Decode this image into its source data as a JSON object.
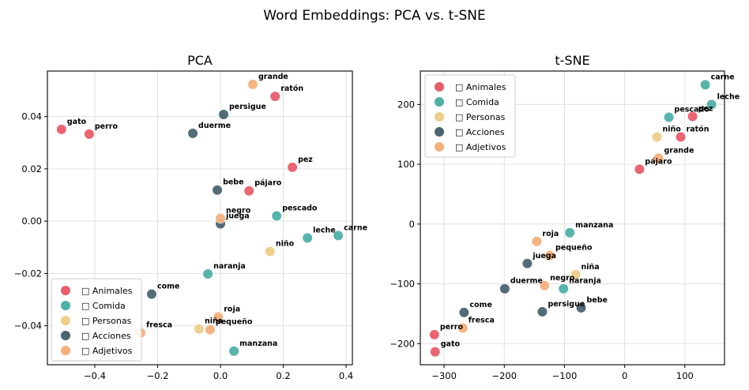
{
  "figure": {
    "suptitle": "Word Embeddings: PCA vs. t-SNE"
  },
  "categories": [
    {
      "key": "animales",
      "label": "□ Animales",
      "color": "#E85D6A"
    },
    {
      "key": "comida",
      "label": "□ Comida",
      "color": "#4FB0A5"
    },
    {
      "key": "personas",
      "label": "□ Personas",
      "color": "#EDCF8A"
    },
    {
      "key": "acciones",
      "label": "□ Acciones",
      "color": "#4A6470"
    },
    {
      "key": "adjetivos",
      "label": "□ Adjetivos",
      "color": "#F4B07C"
    }
  ],
  "chart_data": [
    {
      "type": "scatter",
      "title": "PCA",
      "xlabel": "",
      "ylabel": "",
      "xlim": [
        -0.551,
        0.42
      ],
      "ylim": [
        -0.0549,
        0.0574
      ],
      "xticks": [
        -0.4,
        -0.2,
        0.0,
        0.2,
        0.4
      ],
      "xtick_labels": [
        "−0.4",
        "−0.2",
        "0.0",
        "0.2",
        "0.4"
      ],
      "yticks": [
        -0.04,
        -0.02,
        0.0,
        0.02,
        0.04
      ],
      "ytick_labels": [
        "−0.04",
        "−0.02",
        "0.00",
        "0.02",
        "0.04"
      ],
      "grid": true,
      "legend_position": "lower-left",
      "points": [
        {
          "word": "gato",
          "category": "animales",
          "x": -0.506,
          "y": 0.0351
        },
        {
          "word": "perro",
          "category": "animales",
          "x": -0.418,
          "y": 0.0333
        },
        {
          "word": "ratón",
          "category": "animales",
          "x": 0.174,
          "y": 0.0477
        },
        {
          "word": "pez",
          "category": "animales",
          "x": 0.229,
          "y": 0.0206
        },
        {
          "word": "pájaro",
          "category": "animales",
          "x": 0.091,
          "y": 0.0116
        },
        {
          "word": "pescado",
          "category": "comida",
          "x": 0.179,
          "y": 0.002
        },
        {
          "word": "leche",
          "category": "comida",
          "x": 0.277,
          "y": -0.0064
        },
        {
          "word": "carne",
          "category": "comida",
          "x": 0.375,
          "y": -0.0055
        },
        {
          "word": "naranja",
          "category": "comida",
          "x": -0.04,
          "y": -0.0202
        },
        {
          "word": "manzana",
          "category": "comida",
          "x": 0.043,
          "y": -0.0497
        },
        {
          "word": "niño",
          "category": "personas",
          "x": 0.158,
          "y": -0.0116
        },
        {
          "word": "niña",
          "category": "personas",
          "x": -0.068,
          "y": -0.0412
        },
        {
          "word": "duerme",
          "category": "acciones",
          "x": -0.088,
          "y": 0.0336
        },
        {
          "word": "persigue",
          "category": "acciones",
          "x": 0.01,
          "y": 0.0408
        },
        {
          "word": "bebe",
          "category": "acciones",
          "x": -0.01,
          "y": 0.0119
        },
        {
          "word": "juega",
          "category": "acciones",
          "x": 0.0,
          "y": -0.001
        },
        {
          "word": "come",
          "category": "acciones",
          "x": -0.219,
          "y": -0.0279
        },
        {
          "word": "grande",
          "category": "adjetivos",
          "x": 0.103,
          "y": 0.0523
        },
        {
          "word": "negro",
          "category": "adjetivos",
          "x": 0.0,
          "y": 0.0011
        },
        {
          "word": "roja",
          "category": "adjetivos",
          "x": -0.007,
          "y": -0.0366
        },
        {
          "word": "pequeño",
          "category": "adjetivos",
          "x": -0.033,
          "y": -0.0415
        },
        {
          "word": "fresca",
          "category": "adjetivos",
          "x": -0.254,
          "y": -0.0427
        }
      ]
    },
    {
      "type": "scatter",
      "title": "t-SNE",
      "xlabel": "",
      "ylabel": "",
      "xlim": [
        -339.5,
        165.8
      ],
      "ylim": [
        -235.3,
        255.9
      ],
      "xticks": [
        -300,
        -200,
        -100,
        0,
        100
      ],
      "xtick_labels": [
        "−300",
        "−200",
        "−100",
        "0",
        "100"
      ],
      "yticks": [
        -200,
        -100,
        0,
        100,
        200
      ],
      "ytick_labels": [
        "−200",
        "−100",
        "0",
        "100",
        "200"
      ],
      "grid": true,
      "legend_position": "upper-left",
      "points": [
        {
          "word": "gato",
          "category": "animales",
          "x": -314.9,
          "y": -213.7
        },
        {
          "word": "perro",
          "category": "animales",
          "x": -316.1,
          "y": -185.0
        },
        {
          "word": "ratón",
          "category": "animales",
          "x": 93.0,
          "y": 145.7
        },
        {
          "word": "pez",
          "category": "animales",
          "x": 112.8,
          "y": 180.0
        },
        {
          "word": "pájaro",
          "category": "animales",
          "x": 24.6,
          "y": 91.6
        },
        {
          "word": "pescado",
          "category": "comida",
          "x": 73.3,
          "y": 178.7
        },
        {
          "word": "leche",
          "category": "comida",
          "x": 144.3,
          "y": 199.9
        },
        {
          "word": "carne",
          "category": "comida",
          "x": 133.8,
          "y": 232.9
        },
        {
          "word": "naranja",
          "category": "comida",
          "x": -101.7,
          "y": -108.2
        },
        {
          "word": "manzana",
          "category": "comida",
          "x": -91.2,
          "y": -14.5
        },
        {
          "word": "niño",
          "category": "personas",
          "x": 53.6,
          "y": 145.7
        },
        {
          "word": "niña",
          "category": "personas",
          "x": -81.6,
          "y": -84.5
        },
        {
          "word": "duerme",
          "category": "acciones",
          "x": -199.3,
          "y": -108.2
        },
        {
          "word": "persigue",
          "category": "acciones",
          "x": -136.8,
          "y": -146.6
        },
        {
          "word": "bebe",
          "category": "acciones",
          "x": -72.4,
          "y": -140.0
        },
        {
          "word": "juega",
          "category": "acciones",
          "x": -161.8,
          "y": -66.0
        },
        {
          "word": "come",
          "category": "acciones",
          "x": -266.8,
          "y": -147.9
        },
        {
          "word": "grande",
          "category": "adjetivos",
          "x": 56.2,
          "y": 110.1
        },
        {
          "word": "negro",
          "category": "adjetivos",
          "x": -133.2,
          "y": -103.0
        },
        {
          "word": "roja",
          "category": "adjetivos",
          "x": -146.0,
          "y": -29.0
        },
        {
          "word": "pequeño",
          "category": "adjetivos",
          "x": -124.3,
          "y": -52.4
        },
        {
          "word": "fresca",
          "category": "adjetivos",
          "x": -268.9,
          "y": -174.0
        }
      ]
    }
  ]
}
